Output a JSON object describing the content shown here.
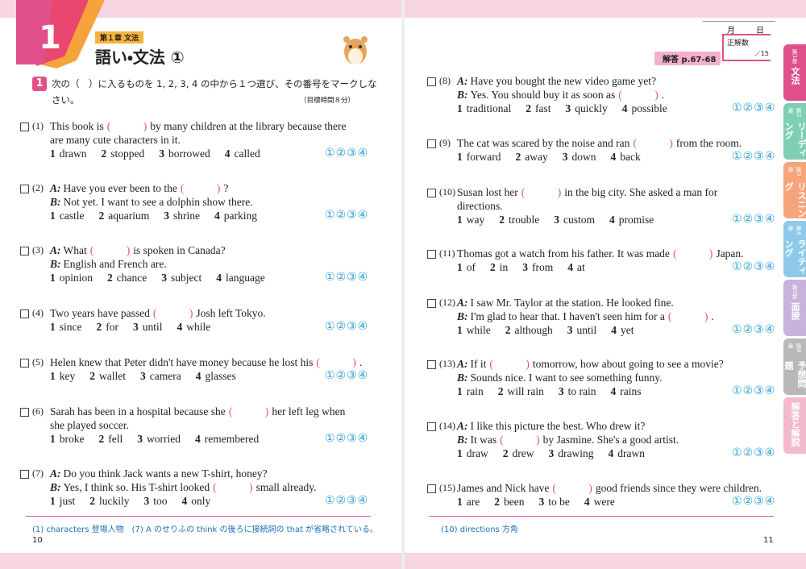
{
  "header": {
    "chapter_number": "1",
    "chapter_label": "第１章 文法",
    "title": "語い・文法 ①"
  },
  "instruction": {
    "number": "1",
    "text": "次の（　）に入るものを 1, 2, 3, 4 の中から１つ選び、その番号をマークしな",
    "text2": "さい。",
    "time": "（目標時間８分）"
  },
  "score": {
    "month": "月",
    "day": "日",
    "label": "正解数",
    "total": "15"
  },
  "answer_ref": "解答 p.67-68",
  "blank": "(　　　)",
  "marks": [
    "①",
    "②",
    "③",
    "④"
  ],
  "questions": [
    {
      "number": "(1)",
      "lines": [
        {
          "before": "This book is",
          "after": "by many children at the library because there"
        },
        {
          "text": "are many cute characters in it."
        }
      ],
      "choices": [
        [
          "1",
          "drawn"
        ],
        [
          "2",
          "stopped"
        ],
        [
          "3",
          "borrowed"
        ],
        [
          "4",
          "called"
        ]
      ]
    },
    {
      "number": "(2)",
      "lines": [
        {
          "speaker": "A:",
          "before": "Have you ever been to the",
          "after": "?"
        },
        {
          "speaker": "B:",
          "text": "Not yet.  I want to see a dolphin show there."
        }
      ],
      "choices": [
        [
          "1",
          "castle"
        ],
        [
          "2",
          "aquarium"
        ],
        [
          "3",
          "shrine"
        ],
        [
          "4",
          "parking"
        ]
      ]
    },
    {
      "number": "(3)",
      "lines": [
        {
          "speaker": "A:",
          "before": "What",
          "after": "is spoken in Canada?"
        },
        {
          "speaker": "B:",
          "text": "English and French are."
        }
      ],
      "choices": [
        [
          "1",
          "opinion"
        ],
        [
          "2",
          "chance"
        ],
        [
          "3",
          "subject"
        ],
        [
          "4",
          "language"
        ]
      ]
    },
    {
      "number": "(4)",
      "lines": [
        {
          "before": "Two years have passed",
          "after": "Josh left Tokyo."
        }
      ],
      "choices": [
        [
          "1",
          "since"
        ],
        [
          "2",
          "for"
        ],
        [
          "3",
          "until"
        ],
        [
          "4",
          "while"
        ]
      ]
    },
    {
      "number": "(5)",
      "lines": [
        {
          "before": "Helen knew that Peter didn't have money because he lost his",
          "after": "."
        }
      ],
      "choices": [
        [
          "1",
          "key"
        ],
        [
          "2",
          "wallet"
        ],
        [
          "3",
          "camera"
        ],
        [
          "4",
          "glasses"
        ]
      ]
    },
    {
      "number": "(6)",
      "lines": [
        {
          "before": "Sarah has been in a hospital because she",
          "after": "her left leg when"
        },
        {
          "text": "she played soccer."
        }
      ],
      "choices": [
        [
          "1",
          "broke"
        ],
        [
          "2",
          "fell"
        ],
        [
          "3",
          "worried"
        ],
        [
          "4",
          "remembered"
        ]
      ]
    },
    {
      "number": "(7)",
      "lines": [
        {
          "speaker": "A:",
          "text": "Do you think Jack wants a new T-shirt, honey?"
        },
        {
          "speaker": "B:",
          "before": "Yes, I think so.  His T-shirt looked",
          "after": "small already."
        }
      ],
      "choices": [
        [
          "1",
          "just"
        ],
        [
          "2",
          "luckily"
        ],
        [
          "3",
          "too"
        ],
        [
          "4",
          "only"
        ]
      ]
    },
    {
      "number": "(8)",
      "lines": [
        {
          "speaker": "A:",
          "text": "Have you bought the new video game yet?"
        },
        {
          "speaker": "B:",
          "before": "Yes.  You should buy it as soon as",
          "after": "."
        }
      ],
      "choices": [
        [
          "1",
          "traditional"
        ],
        [
          "2",
          "fast"
        ],
        [
          "3",
          "quickly"
        ],
        [
          "4",
          "possible"
        ]
      ]
    },
    {
      "number": "(9)",
      "lines": [
        {
          "before": "The cat was scared by the noise and ran",
          "after": "from the room."
        }
      ],
      "choices": [
        [
          "1",
          "forward"
        ],
        [
          "2",
          "away"
        ],
        [
          "3",
          "down"
        ],
        [
          "4",
          "back"
        ]
      ]
    },
    {
      "number": "(10)",
      "lines": [
        {
          "before": "Susan lost her",
          "after": "in the big city.  She asked a man for"
        },
        {
          "text": "directions."
        }
      ],
      "choices": [
        [
          "1",
          "way"
        ],
        [
          "2",
          "trouble"
        ],
        [
          "3",
          "custom"
        ],
        [
          "4",
          "promise"
        ]
      ]
    },
    {
      "number": "(11)",
      "lines": [
        {
          "before": "Thomas got a watch from his father.  It was made",
          "after": "Japan."
        }
      ],
      "choices": [
        [
          "1",
          "of"
        ],
        [
          "2",
          "in"
        ],
        [
          "3",
          "from"
        ],
        [
          "4",
          "at"
        ]
      ]
    },
    {
      "number": "(12)",
      "lines": [
        {
          "speaker": "A:",
          "text": "I saw Mr. Taylor at the station.  He looked fine."
        },
        {
          "speaker": "B:",
          "before": "I'm glad to hear that.  I haven't seen him for a",
          "after": "."
        }
      ],
      "choices": [
        [
          "1",
          "while"
        ],
        [
          "2",
          "although"
        ],
        [
          "3",
          "until"
        ],
        [
          "4",
          "yet"
        ]
      ]
    },
    {
      "number": "(13)",
      "lines": [
        {
          "speaker": "A:",
          "before": "If it",
          "after": "tomorrow, how about going to see a movie?"
        },
        {
          "speaker": "B:",
          "text": "Sounds nice.  I want to see something funny."
        }
      ],
      "choices": [
        [
          "1",
          "rain"
        ],
        [
          "2",
          "will rain"
        ],
        [
          "3",
          "to rain"
        ],
        [
          "4",
          "rains"
        ]
      ]
    },
    {
      "number": "(14)",
      "lines": [
        {
          "speaker": "A:",
          "text": "I like this picture the best.  Who drew it?"
        },
        {
          "speaker": "B:",
          "before": "It was",
          "after": "by Jasmine.  She's a good artist."
        }
      ],
      "choices": [
        [
          "1",
          "draw"
        ],
        [
          "2",
          "drew"
        ],
        [
          "3",
          "drawing"
        ],
        [
          "4",
          "drawn"
        ]
      ]
    },
    {
      "number": "(15)",
      "lines": [
        {
          "before": "James and Nick have",
          "after": "good friends since they were children."
        }
      ],
      "choices": [
        [
          "1",
          "are"
        ],
        [
          "2",
          "been"
        ],
        [
          "3",
          "to be"
        ],
        [
          "4",
          "were"
        ]
      ]
    }
  ],
  "notes_left": "(1) characters 登場人物　(7) A のせりふの think の後ろに接続詞の that が省略されている。",
  "notes_right": "(10) directions 方角",
  "page_left": "10",
  "page_right": "11",
  "tabs": [
    [
      "第1章",
      "文法"
    ],
    [
      "第2章",
      "リーディング"
    ],
    [
      "第3章",
      "リスニング"
    ],
    [
      "第4章",
      "ライティング"
    ],
    [
      "第5章",
      "面接"
    ],
    [
      "第6章",
      "予想問題"
    ],
    [
      "",
      "解答と解説"
    ]
  ]
}
